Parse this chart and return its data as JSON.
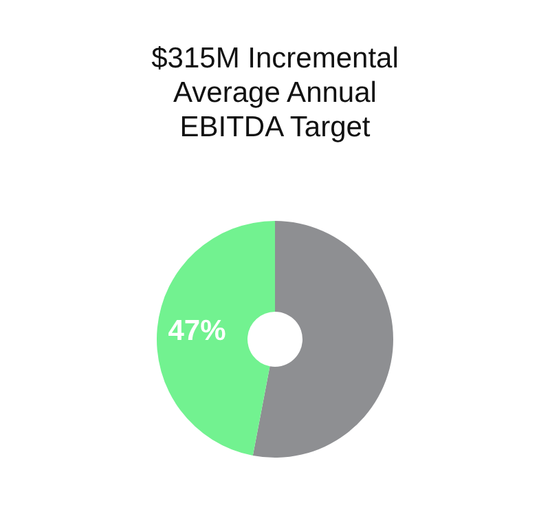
{
  "chart_data": {
    "type": "donut",
    "title": "$315M Incremental\nAverage Annual\nEBITDA Target",
    "categories": [
      null,
      null
    ],
    "values": [
      53,
      47
    ],
    "colors": [
      "#8e8f92",
      "#72f290"
    ],
    "value_labels": [
      null,
      "47%"
    ],
    "legend": false
  }
}
